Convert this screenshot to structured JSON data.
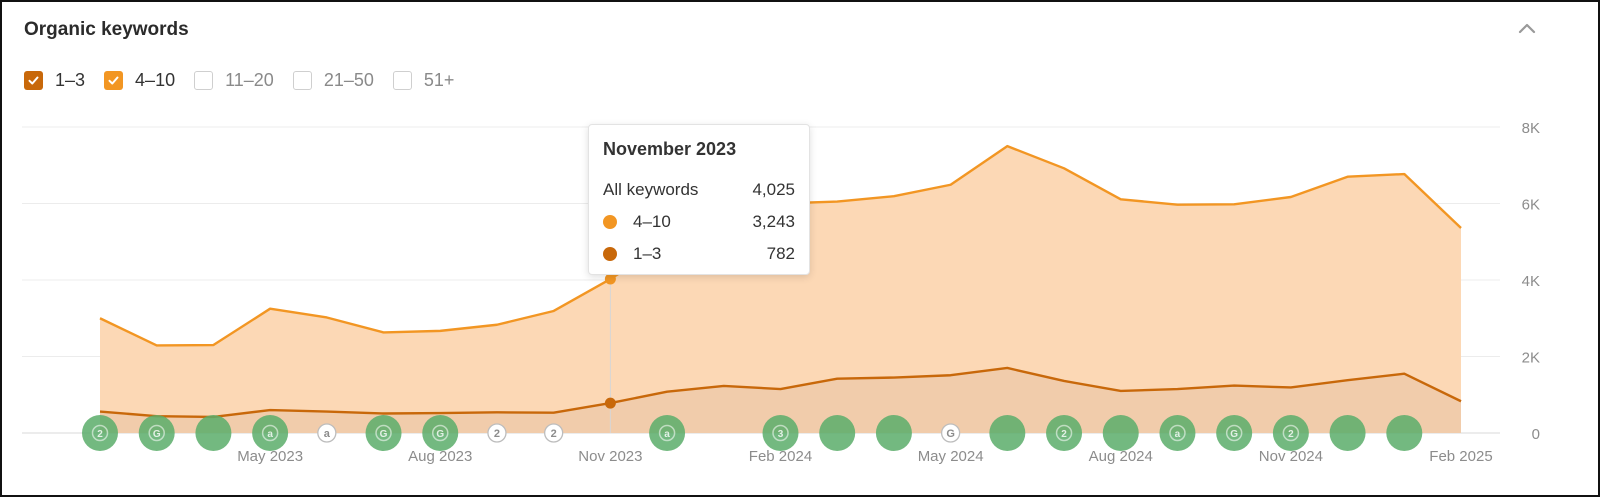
{
  "panel": {
    "title": "Organic keywords"
  },
  "filters": [
    {
      "label": "1–3",
      "checked": true,
      "color": "#c8680a"
    },
    {
      "label": "4–10",
      "checked": true,
      "color": "#f29623"
    },
    {
      "label": "11–20",
      "checked": false
    },
    {
      "label": "21–50",
      "checked": false
    },
    {
      "label": "51+",
      "checked": false
    }
  ],
  "tooltip": {
    "title": "November 2023",
    "rows": [
      {
        "label": "All keywords",
        "value": "4,025"
      },
      {
        "label": "4–10",
        "value": "3,243",
        "color": "#f29623"
      },
      {
        "label": "1–3",
        "value": "782",
        "color": "#c8680a"
      }
    ]
  },
  "chart_data": {
    "type": "area",
    "x": [
      "2023-02",
      "2023-03",
      "2023-04",
      "2023-05",
      "2023-06",
      "2023-07",
      "2023-08",
      "2023-09",
      "2023-10",
      "2023-11",
      "2023-12",
      "2024-01",
      "2024-02",
      "2024-03",
      "2024-04",
      "2024-05",
      "2024-06",
      "2024-07",
      "2024-08",
      "2024-09",
      "2024-10",
      "2024-11",
      "2024-12",
      "2025-01",
      "2025-02"
    ],
    "x_tick_labels": [
      "May 2023",
      "Aug 2023",
      "Nov 2023",
      "Feb 2024",
      "May 2024",
      "Aug 2024",
      "Nov 2024",
      "Feb 2025"
    ],
    "x_tick_positions": [
      "2023-05",
      "2023-08",
      "2023-11",
      "2024-02",
      "2024-05",
      "2024-08",
      "2024-11",
      "2025-02"
    ],
    "y_tick_labels": [
      "0",
      "2K",
      "4K",
      "6K",
      "8K"
    ],
    "ylim": [
      0,
      8000
    ],
    "grid": true,
    "stacked": true,
    "series": [
      {
        "name": "1–3",
        "color": "#c8680a",
        "values": [
          560,
          440,
          420,
          600,
          560,
          510,
          520,
          540,
          530,
          782,
          1080,
          1230,
          1150,
          1420,
          1450,
          1510,
          1700,
          1360,
          1100,
          1150,
          1240,
          1190,
          1380,
          1550,
          830
        ]
      },
      {
        "name": "4–10",
        "color": "#f29623",
        "values": [
          2440,
          1850,
          1880,
          2650,
          2460,
          2120,
          2150,
          2290,
          2660,
          3243,
          3890,
          4380,
          4850,
          4630,
          4740,
          4980,
          5800,
          5560,
          5010,
          4820,
          4740,
          4980,
          5320,
          5220,
          4530
        ]
      }
    ],
    "highlight": "2023-11",
    "annotations": [
      {
        "x": "2023-02",
        "glyph": "2",
        "filled": true
      },
      {
        "x": "2023-03",
        "glyph": "G",
        "filled": true
      },
      {
        "x": "2023-04",
        "glyph": "",
        "filled": true
      },
      {
        "x": "2023-05",
        "glyph": "a",
        "filled": true
      },
      {
        "x": "2023-06",
        "glyph": "a",
        "filled": false
      },
      {
        "x": "2023-07",
        "glyph": "G",
        "filled": true
      },
      {
        "x": "2023-08",
        "glyph": "G",
        "filled": true
      },
      {
        "x": "2023-09",
        "glyph": "2",
        "filled": false
      },
      {
        "x": "2023-10",
        "glyph": "2",
        "filled": false
      },
      {
        "x": "2023-12",
        "glyph": "a",
        "filled": true
      },
      {
        "x": "2024-02",
        "glyph": "3",
        "filled": true
      },
      {
        "x": "2024-03",
        "glyph": "",
        "filled": true
      },
      {
        "x": "2024-04",
        "glyph": "",
        "filled": true
      },
      {
        "x": "2024-05",
        "glyph": "G",
        "filled": false
      },
      {
        "x": "2024-06",
        "glyph": "",
        "filled": true
      },
      {
        "x": "2024-07",
        "glyph": "2",
        "filled": true
      },
      {
        "x": "2024-08",
        "glyph": "",
        "filled": true
      },
      {
        "x": "2024-09",
        "glyph": "a",
        "filled": true
      },
      {
        "x": "2024-10",
        "glyph": "G",
        "filled": true
      },
      {
        "x": "2024-11",
        "glyph": "2",
        "filled": true
      },
      {
        "x": "2024-12",
        "glyph": "",
        "filled": true
      },
      {
        "x": "2025-01",
        "glyph": "",
        "filled": true
      }
    ],
    "colors": {
      "area": "#fcd8b5",
      "grid": "#ececec",
      "axis_text": "#8c8c8c",
      "annotation": "#5aad6a"
    }
  }
}
